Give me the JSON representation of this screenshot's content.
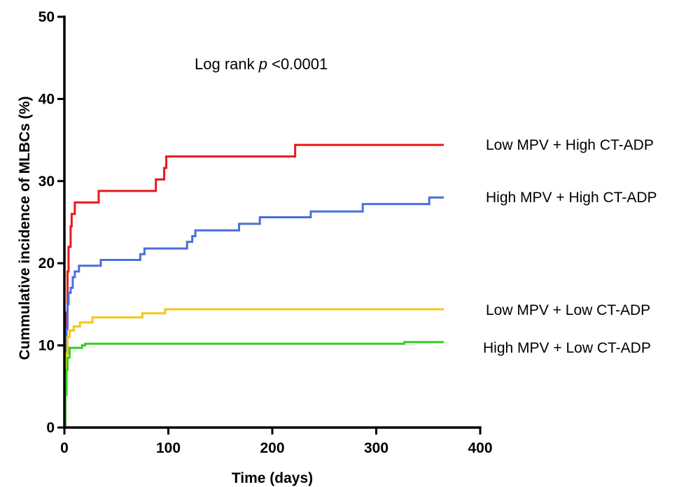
{
  "chart_data": {
    "type": "line",
    "step": true,
    "title": "",
    "xlabel": "Time (days)",
    "ylabel": "Cummulative incidence of MLBCs (%)",
    "xlim": [
      0,
      400
    ],
    "ylim": [
      0,
      50
    ],
    "xticks": [
      0,
      100,
      200,
      300,
      400
    ],
    "yticks": [
      0,
      10,
      20,
      30,
      40,
      50
    ],
    "grid": false,
    "annotation": {
      "prefix": "Log rank ",
      "italic": "p",
      "suffix": " <0.0001"
    },
    "series": [
      {
        "name": "Low MPV + High CT-ADP",
        "color": "#e8191c",
        "points": [
          [
            0,
            0
          ],
          [
            1,
            6
          ],
          [
            2,
            14
          ],
          [
            3,
            19
          ],
          [
            4,
            22
          ],
          [
            6,
            24.5
          ],
          [
            7,
            26
          ],
          [
            10,
            27.4
          ],
          [
            33,
            28.8
          ],
          [
            88,
            30.2
          ],
          [
            96,
            31.6
          ],
          [
            98,
            33
          ],
          [
            222,
            34.4
          ],
          [
            365,
            34.4
          ]
        ]
      },
      {
        "name": "High MPV + High CT-ADP",
        "color": "#4a6fde",
        "points": [
          [
            0,
            0
          ],
          [
            1,
            5
          ],
          [
            2,
            12
          ],
          [
            3,
            15
          ],
          [
            4,
            16.4
          ],
          [
            6,
            17
          ],
          [
            8,
            18.3
          ],
          [
            10,
            19
          ],
          [
            14,
            19.7
          ],
          [
            35,
            20.4
          ],
          [
            73,
            21.1
          ],
          [
            77,
            21.8
          ],
          [
            118,
            22.6
          ],
          [
            123,
            23.3
          ],
          [
            126,
            24
          ],
          [
            168,
            24.8
          ],
          [
            188,
            25.6
          ],
          [
            237,
            26.3
          ],
          [
            287,
            27.2
          ],
          [
            351,
            28
          ],
          [
            365,
            28
          ]
        ]
      },
      {
        "name": "Low MPV + Low CT-ADP",
        "color": "#f5c518",
        "points": [
          [
            0,
            0
          ],
          [
            1,
            4
          ],
          [
            2,
            9
          ],
          [
            3,
            11
          ],
          [
            5,
            11.8
          ],
          [
            9,
            12.3
          ],
          [
            15,
            12.8
          ],
          [
            27,
            13.4
          ],
          [
            75,
            13.9
          ],
          [
            97,
            14.4
          ],
          [
            365,
            14.4
          ]
        ]
      },
      {
        "name": "High MPV + Low CT-ADP",
        "color": "#2fd11c",
        "points": [
          [
            0,
            0
          ],
          [
            1,
            4
          ],
          [
            2,
            7
          ],
          [
            3,
            8.5
          ],
          [
            5,
            9.7
          ],
          [
            17,
            10
          ],
          [
            20,
            10.2
          ],
          [
            327,
            10.4
          ],
          [
            365,
            10.4
          ]
        ]
      }
    ]
  }
}
